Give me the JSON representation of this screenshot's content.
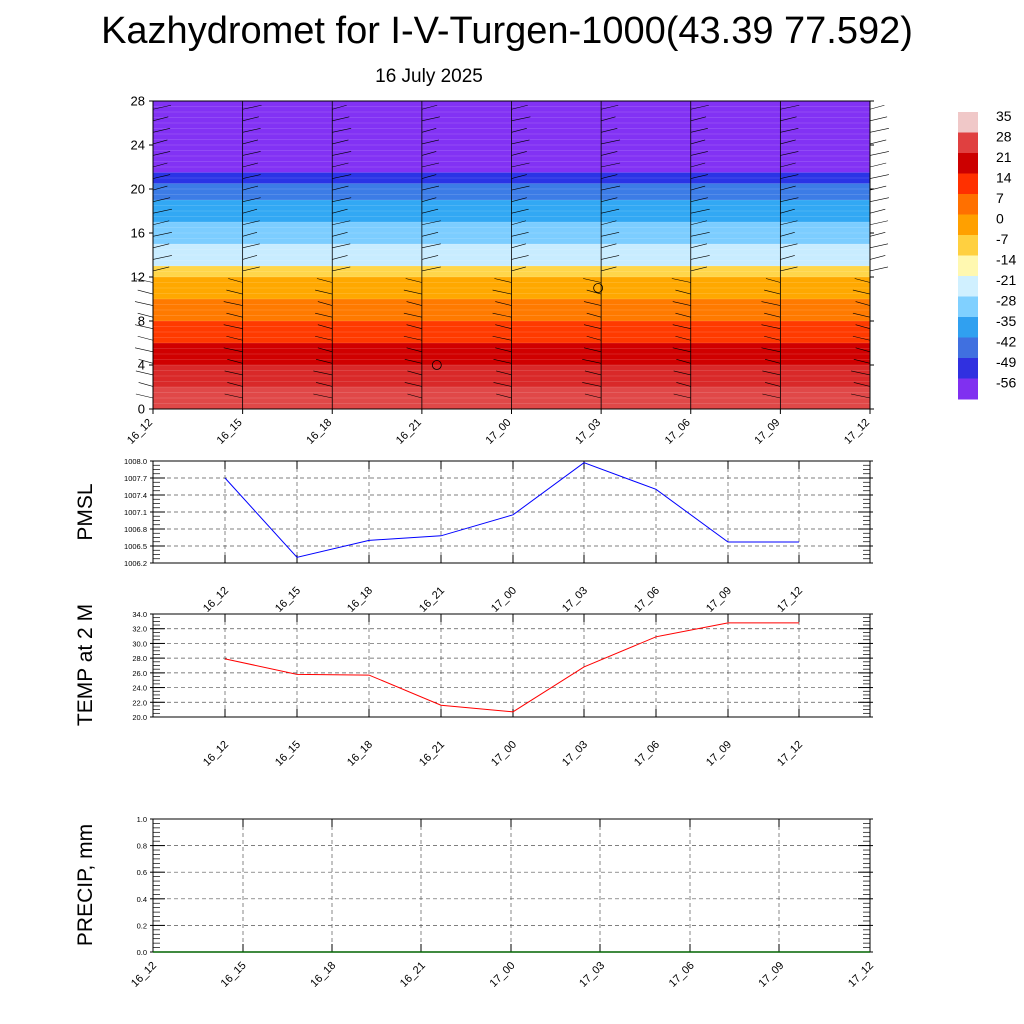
{
  "header": {
    "title": "Kazhydromet for I-V-Turgen-1000(43.39 77.592)",
    "date": "16 July 2025"
  },
  "colors": {
    "pmsl_line": "#0000ff",
    "temp_line": "#ff0000",
    "precip_line": "#006400"
  },
  "chart_data": [
    {
      "type": "heatmap",
      "name": "temperature-height-section",
      "x_ticks": [
        "16_12",
        "16_15",
        "16_18",
        "16_21",
        "17_00",
        "17_03",
        "17_06",
        "17_09",
        "17_12"
      ],
      "y_ticks": [
        "0",
        "4",
        "8",
        "12",
        "16",
        "20",
        "24",
        "28"
      ],
      "ylim": [
        0,
        28
      ],
      "colorbar_labels": [
        "35",
        "28",
        "21",
        "14",
        "7",
        "0",
        "-7",
        "-14",
        "-21",
        "-28",
        "-35",
        "-42",
        "-49",
        "-56"
      ],
      "colorbar_colors": [
        "#f0c8c8",
        "#e04040",
        "#cc0000",
        "#ff3000",
        "#ff7000",
        "#ffa000",
        "#ffd040",
        "#fff8b0",
        "#d0f0ff",
        "#80d0ff",
        "#30a0f0",
        "#4070e0",
        "#3030e0",
        "#8030f0"
      ],
      "levels": [
        {
          "from": 0,
          "to": 2,
          "temp": 28
        },
        {
          "from": 2,
          "to": 4,
          "temp": 25
        },
        {
          "from": 4,
          "to": 6,
          "temp": 21
        },
        {
          "from": 6,
          "to": 8,
          "temp": 14
        },
        {
          "from": 8,
          "to": 10,
          "temp": 7
        },
        {
          "from": 10,
          "to": 12,
          "temp": 0
        },
        {
          "from": 12,
          "to": 13,
          "temp": -7
        },
        {
          "from": 13,
          "to": 15,
          "temp": -21
        },
        {
          "from": 15,
          "to": 17,
          "temp": -28
        },
        {
          "from": 17,
          "to": 19,
          "temp": -35
        },
        {
          "from": 19,
          "to": 20.5,
          "temp": -42
        },
        {
          "from": 20.5,
          "to": 21.5,
          "temp": -49
        },
        {
          "from": 21.5,
          "to": 22.5,
          "temp": -56
        },
        {
          "from": 22.5,
          "to": 28,
          "temp": -56
        }
      ],
      "barb_times": [
        0,
        3,
        6,
        9,
        12,
        15,
        18,
        21,
        24
      ],
      "calm_markers": [
        {
          "x": 9.5,
          "y": 4
        },
        {
          "x": 14.9,
          "y": 11
        }
      ]
    },
    {
      "type": "line",
      "name": "pmsl",
      "ylabel": "PMSL",
      "x": [
        "16_12",
        "16_15",
        "16_18",
        "16_21",
        "17_00",
        "17_03",
        "17_06",
        "17_09",
        "17_12"
      ],
      "values": [
        1007.7,
        1006.3,
        1006.6,
        1006.68,
        1007.05,
        1007.97,
        1007.5,
        1006.57,
        1006.57
      ],
      "y_ticks": [
        "1006.2",
        "1006.5",
        "1006.8",
        "1007.1",
        "1007.4",
        "1007.7",
        "1008.0"
      ],
      "ylim": [
        1006.2,
        1008.0
      ]
    },
    {
      "type": "line",
      "name": "temperature-2m",
      "ylabel": "TEMP at 2 M",
      "x": [
        "16_12",
        "16_15",
        "16_18",
        "16_21",
        "17_00",
        "17_03",
        "17_06",
        "17_09",
        "17_12"
      ],
      "values": [
        27.9,
        25.8,
        25.7,
        21.6,
        20.7,
        26.8,
        30.9,
        32.8,
        32.8
      ],
      "y_ticks": [
        "20.0",
        "22.0",
        "24.0",
        "26.0",
        "28.0",
        "30.0",
        "32.0",
        "34.0"
      ],
      "ylim": [
        20,
        34
      ]
    },
    {
      "type": "line",
      "name": "precipitation",
      "ylabel": "PRECIP, mm",
      "x_ticks": [
        "16_12",
        "16_15",
        "16_18",
        "16_21",
        "17_00",
        "17_03",
        "17_06",
        "17_09",
        "17_12"
      ],
      "values": [
        0,
        0,
        0,
        0,
        0,
        0,
        0,
        0,
        0
      ],
      "y_ticks": [
        "0.0",
        "0.2",
        "0.4",
        "0.6",
        "0.8",
        "1.0"
      ],
      "ylim": [
        0,
        1
      ]
    }
  ]
}
